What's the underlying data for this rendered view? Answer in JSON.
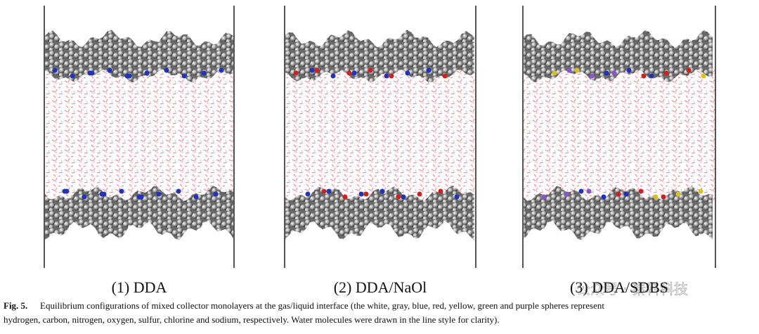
{
  "panels": [
    {
      "label": "(1) DDA"
    },
    {
      "label": "(2) DDA/NaOl"
    },
    {
      "label": "(3) DDA/SDBS"
    }
  ],
  "caption": {
    "label": "Fig. 5.",
    "lines": [
      "Equilibrium configurations of mixed collector monolayers at the gas/liquid interface (the white, gray, blue, red, yellow, green and purple spheres represent",
      "hydrogen, carbon, nitrogen, oxygen, sulfur, chlorine and sodium, respectively. Water molecules were drawn in the line style for clarity)."
    ]
  },
  "watermark": "公众号 · 秦科科技"
}
